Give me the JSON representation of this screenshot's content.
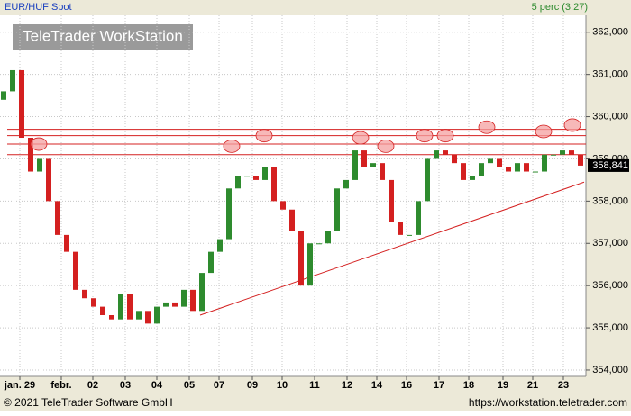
{
  "chart_data": {
    "type": "candlestick",
    "title": "EUR/HUF Spot",
    "subtitle": "5 perc (3:27)",
    "watermark": "TeleTrader WorkStation",
    "footer_left": "© 2021 TeleTrader Software GmbH",
    "footer_right": "https://workstation.teletrader.com",
    "ylim": [
      353.85,
      362.4
    ],
    "yticks": [
      {
        "value": 354,
        "label": "354,000"
      },
      {
        "value": 355,
        "label": "355,000"
      },
      {
        "value": 356,
        "label": "356,000"
      },
      {
        "value": 357,
        "label": "357,000"
      },
      {
        "value": 358,
        "label": "358,000"
      },
      {
        "value": 359,
        "label": "359,000"
      },
      {
        "value": 360,
        "label": "360,000"
      },
      {
        "value": 361,
        "label": "361,000"
      },
      {
        "value": 362,
        "label": "362,000"
      }
    ],
    "xlim": [
      0,
      65
    ],
    "xticks": [
      {
        "value": 2.2,
        "label": "jan. 29"
      },
      {
        "value": 6.8,
        "label": "febr."
      },
      {
        "value": 10.3,
        "label": "02"
      },
      {
        "value": 13.9,
        "label": "03"
      },
      {
        "value": 17.4,
        "label": "04"
      },
      {
        "value": 21.0,
        "label": "05"
      },
      {
        "value": 24.3,
        "label": "07"
      },
      {
        "value": 28.0,
        "label": "09"
      },
      {
        "value": 31.3,
        "label": "10"
      },
      {
        "value": 34.9,
        "label": "11"
      },
      {
        "value": 38.5,
        "label": "12"
      },
      {
        "value": 41.8,
        "label": "14"
      },
      {
        "value": 45.1,
        "label": "16"
      },
      {
        "value": 48.7,
        "label": "17"
      },
      {
        "value": 52.0,
        "label": "18"
      },
      {
        "value": 55.8,
        "label": "19"
      },
      {
        "value": 59.1,
        "label": "21"
      },
      {
        "value": 62.5,
        "label": "23"
      }
    ],
    "grid": true,
    "up_color": "#2e8b2e",
    "down_color": "#d42020",
    "x": [
      0.4,
      1.4,
      2.4,
      3.4,
      4.4,
      5.4,
      6.4,
      7.4,
      8.4,
      9.4,
      10.4,
      11.4,
      12.4,
      13.4,
      14.4,
      15.4,
      16.4,
      17.4,
      18.4,
      19.4,
      20.4,
      21.4,
      22.4,
      23.4,
      24.4,
      25.4,
      26.4,
      27.4,
      28.4,
      29.4,
      30.4,
      31.4,
      32.4,
      33.4,
      34.4,
      35.4,
      36.4,
      37.4,
      38.4,
      39.4,
      40.4,
      41.4,
      42.4,
      43.4,
      44.4,
      45.4,
      46.4,
      47.4,
      48.4,
      49.4,
      50.4,
      51.4,
      52.4,
      53.4,
      54.4,
      55.4,
      56.4,
      57.4,
      58.4,
      59.4,
      60.4,
      61.4,
      62.4,
      63.4,
      64.4
    ],
    "open": [
      360.4,
      360.6,
      361.1,
      359.5,
      358.7,
      359.0,
      358.0,
      357.2,
      356.8,
      355.9,
      355.7,
      355.5,
      355.3,
      355.2,
      355.8,
      355.2,
      355.4,
      355.1,
      355.5,
      355.6,
      355.5,
      355.9,
      355.4,
      356.3,
      356.8,
      357.1,
      358.3,
      358.6,
      358.6,
      358.5,
      358.8,
      358.0,
      357.8,
      357.3,
      356.0,
      357.0,
      357.0,
      357.3,
      358.3,
      358.5,
      359.2,
      358.8,
      358.9,
      358.5,
      357.5,
      357.2,
      357.2,
      358.0,
      359.0,
      359.2,
      359.1,
      358.9,
      358.5,
      358.6,
      358.9,
      359.0,
      358.8,
      358.7,
      358.9,
      358.7,
      358.7,
      359.1,
      359.1,
      359.2,
      359.1
    ],
    "close": [
      360.6,
      361.1,
      359.5,
      358.7,
      359.0,
      358.0,
      357.2,
      356.8,
      355.9,
      355.7,
      355.5,
      355.3,
      355.2,
      355.8,
      355.2,
      355.4,
      355.1,
      355.5,
      355.6,
      355.5,
      355.9,
      355.4,
      356.3,
      356.8,
      357.1,
      358.3,
      358.6,
      358.6,
      358.5,
      358.8,
      358.0,
      357.8,
      357.3,
      356.0,
      357.0,
      357.0,
      357.3,
      358.3,
      358.5,
      359.2,
      358.8,
      358.9,
      358.5,
      357.5,
      357.2,
      357.2,
      358.0,
      359.0,
      359.2,
      359.1,
      358.9,
      358.5,
      358.6,
      358.9,
      359.0,
      358.8,
      358.7,
      358.9,
      358.7,
      358.7,
      359.1,
      359.1,
      359.2,
      359.1,
      358.841
    ],
    "last_price": {
      "value": 358.841,
      "label": "358,841"
    },
    "line_color": "#d42020",
    "resistance_levels": [
      359.7,
      359.55,
      359.35,
      359.1
    ],
    "trend_line": {
      "x": [
        22.2,
        64.8
      ],
      "y": [
        355.3,
        358.45
      ]
    },
    "marker_color": "#f4a0a0",
    "markers": {
      "x": [
        4.3,
        25.7,
        29.3,
        40.0,
        42.8,
        47.1,
        49.4,
        54.0,
        60.3,
        63.5
      ],
      "y": [
        359.35,
        359.3,
        359.55,
        359.5,
        359.3,
        359.55,
        359.55,
        359.75,
        359.65,
        359.8
      ]
    }
  }
}
